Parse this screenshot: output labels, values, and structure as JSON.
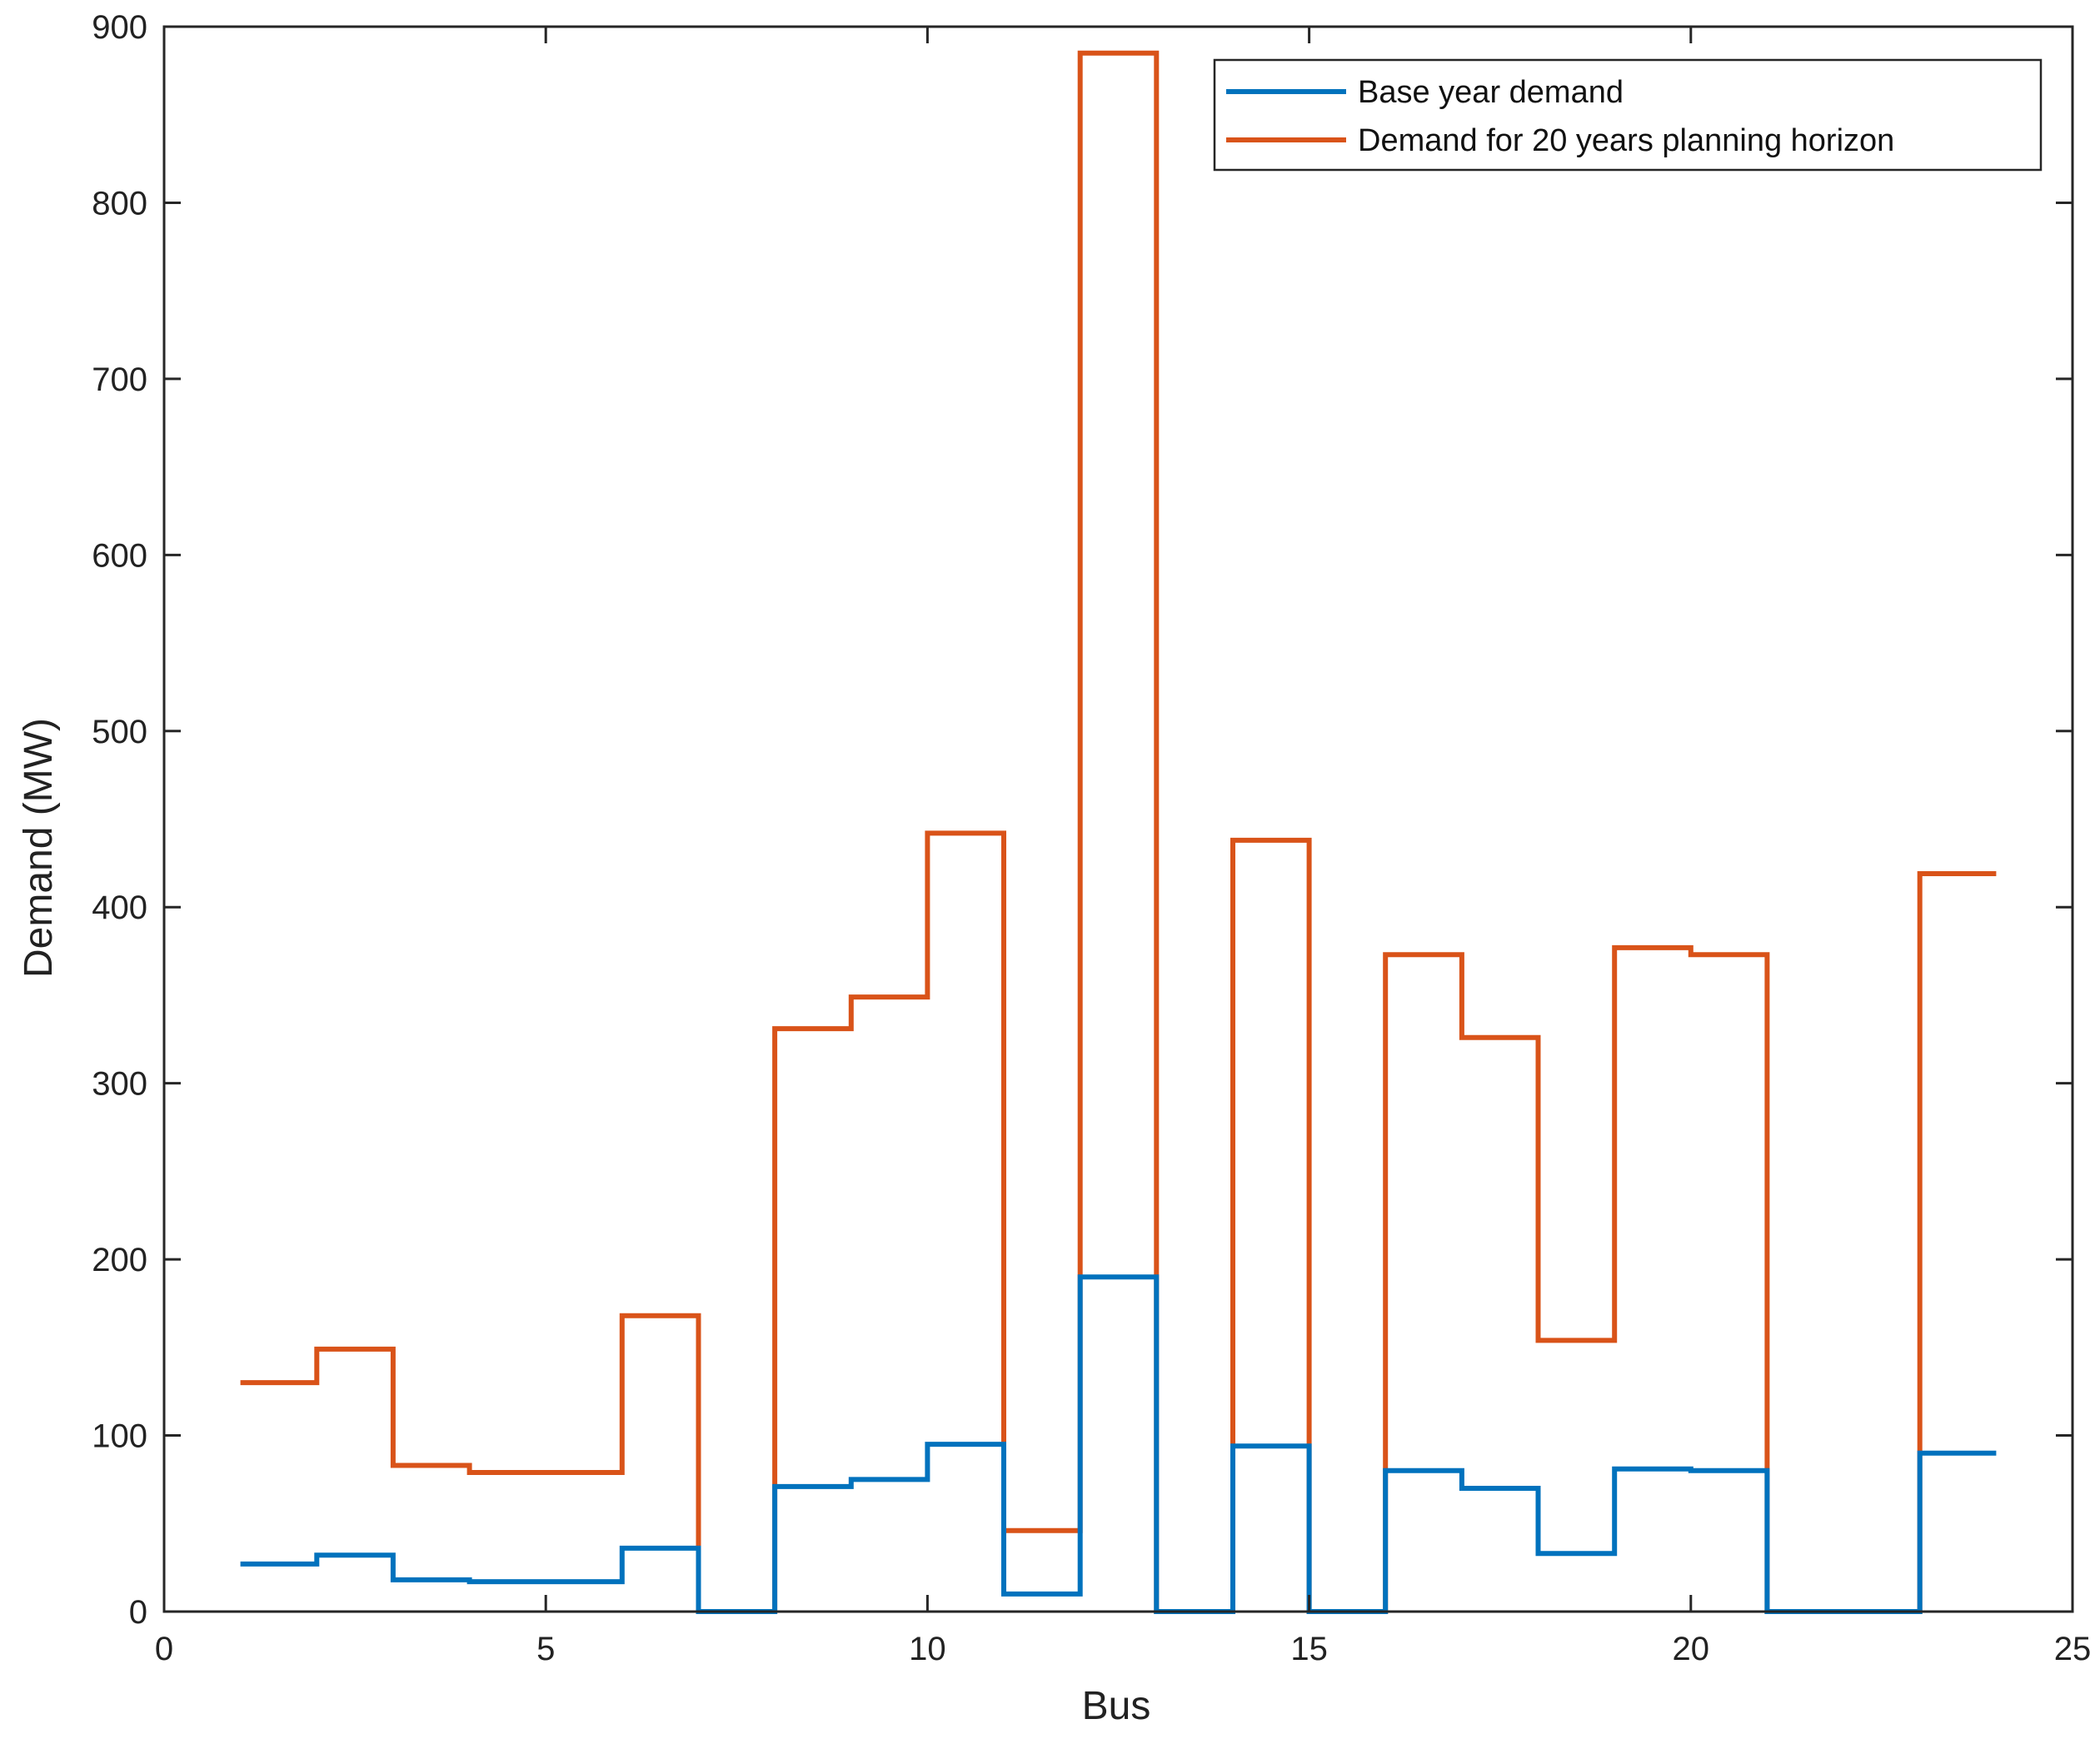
{
  "chart_data": {
    "type": "line",
    "style": "stairs",
    "title": "",
    "xlabel": "Bus",
    "ylabel": "Demand (MW)",
    "xlim": [
      0,
      25
    ],
    "ylim": [
      0,
      900
    ],
    "xticks": [
      0,
      5,
      10,
      15,
      20,
      25
    ],
    "yticks": [
      0,
      100,
      200,
      300,
      400,
      500,
      600,
      700,
      800,
      900
    ],
    "grid": false,
    "legend_position": "top-right",
    "x": [
      1,
      2,
      3,
      4,
      5,
      6,
      7,
      8,
      9,
      10,
      11,
      12,
      13,
      14,
      15,
      16,
      17,
      18,
      19,
      20,
      21,
      22,
      23,
      24
    ],
    "series": [
      {
        "name": "Base year demand",
        "color": "#0072BD",
        "values": [
          27,
          32,
          18,
          17,
          17,
          36,
          0,
          71,
          75,
          95,
          10,
          190,
          0,
          94,
          0,
          80,
          70,
          33,
          81,
          80,
          0,
          0,
          90,
          90
        ]
      },
      {
        "name": "Demand for 20 years planning horizon",
        "color": "#D95319",
        "values": [
          130,
          149,
          83,
          79,
          79,
          168,
          0,
          331,
          349,
          442,
          46,
          885,
          0,
          438,
          0,
          373,
          326,
          154,
          377,
          373,
          0,
          0,
          419,
          419
        ]
      }
    ]
  }
}
